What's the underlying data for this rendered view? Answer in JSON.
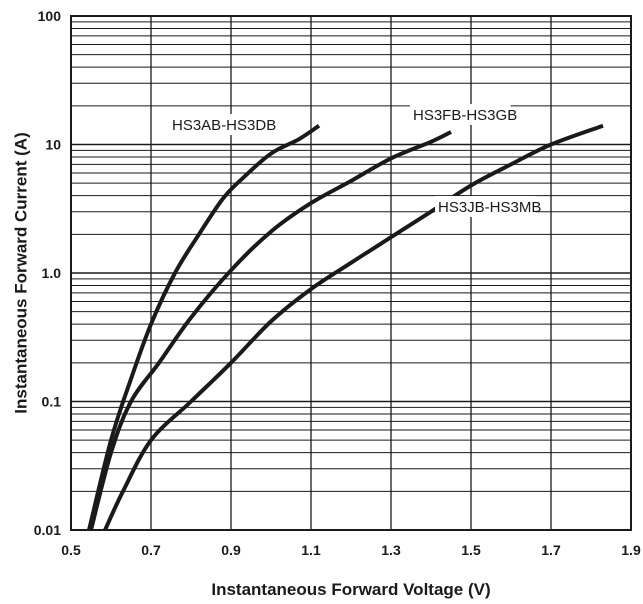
{
  "chart_data": {
    "type": "line",
    "xlabel": "Instantaneous Forward Voltage (V)",
    "ylabel": "Instantaneous Forward Current (A)",
    "xlim": [
      0.5,
      1.9
    ],
    "ylim": [
      0.01,
      100
    ],
    "y_scale": "log",
    "grid": true,
    "x_ticks": [
      "0.5",
      "0.7",
      "0.9",
      "1.1",
      "1.3",
      "1.5",
      "1.7",
      "1.9"
    ],
    "y_ticks": [
      "0.01",
      "0.1",
      "1.0",
      "10",
      "100"
    ],
    "series": [
      {
        "name": "HS3AB-HS3DB",
        "points": [
          [
            0.545,
            0.01
          ],
          [
            0.6,
            0.05
          ],
          [
            0.65,
            0.15
          ],
          [
            0.7,
            0.4
          ],
          [
            0.76,
            1.0
          ],
          [
            0.82,
            2.0
          ],
          [
            0.88,
            3.8
          ],
          [
            0.93,
            5.5
          ],
          [
            1.0,
            8.5
          ],
          [
            1.07,
            11.0
          ],
          [
            1.12,
            14.0
          ]
        ]
      },
      {
        "name": "HS3FB-HS3GB",
        "points": [
          [
            0.55,
            0.01
          ],
          [
            0.6,
            0.04
          ],
          [
            0.65,
            0.1
          ],
          [
            0.72,
            0.2
          ],
          [
            0.8,
            0.45
          ],
          [
            0.9,
            1.05
          ],
          [
            1.0,
            2.1
          ],
          [
            1.1,
            3.5
          ],
          [
            1.2,
            5.2
          ],
          [
            1.3,
            7.8
          ],
          [
            1.4,
            10.5
          ],
          [
            1.45,
            12.5
          ]
        ]
      },
      {
        "name": "HS3JB-HS3MB",
        "points": [
          [
            0.585,
            0.01
          ],
          [
            0.63,
            0.02
          ],
          [
            0.7,
            0.05
          ],
          [
            0.8,
            0.1
          ],
          [
            0.9,
            0.2
          ],
          [
            1.0,
            0.42
          ],
          [
            1.1,
            0.75
          ],
          [
            1.2,
            1.2
          ],
          [
            1.3,
            1.9
          ],
          [
            1.4,
            3.0
          ],
          [
            1.5,
            4.8
          ],
          [
            1.6,
            7.0
          ],
          [
            1.7,
            10.0
          ],
          [
            1.83,
            14.0
          ]
        ]
      }
    ],
    "annotations": [
      "HS3AB-HS3DB",
      "HS3FB-HS3GB",
      "HS3JB-HS3MB"
    ]
  }
}
